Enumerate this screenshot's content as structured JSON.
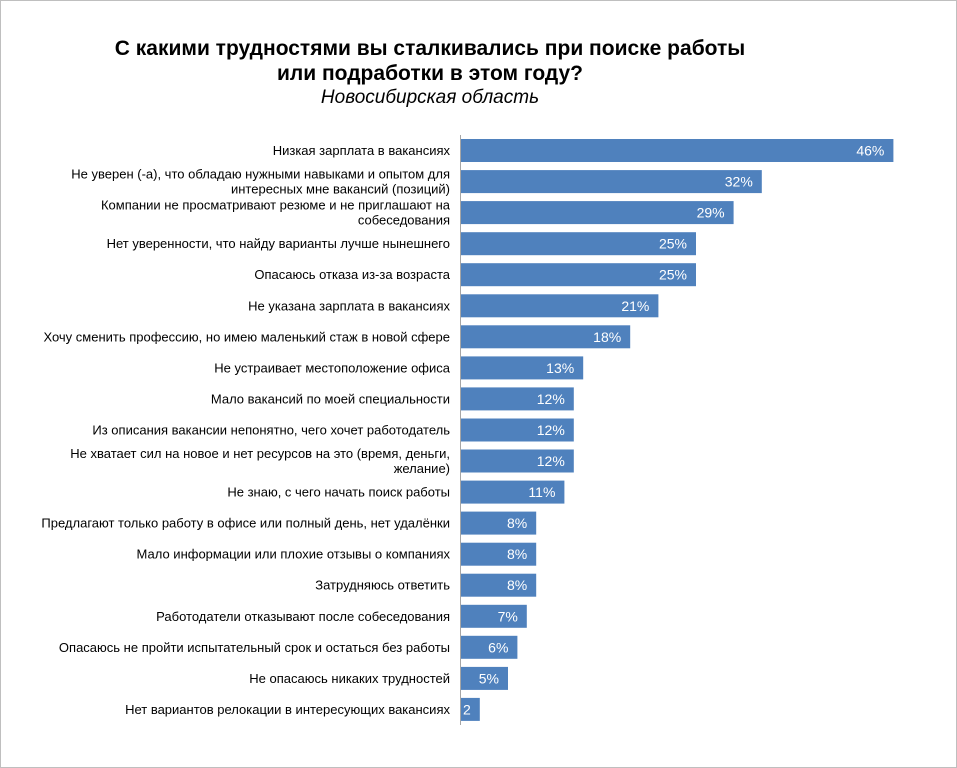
{
  "header": {
    "title_line1": "С какими трудностями вы сталкивались при поиске работы",
    "title_line2": "или подработки в этом году?",
    "subtitle": "Новосибирская область"
  },
  "colors": {
    "bar": "#4f81bd",
    "value_label": "#ffffff",
    "axis": "#a6a6a6",
    "border": "#bfbfbf"
  },
  "chart_data": {
    "type": "bar",
    "orientation": "horizontal",
    "title": "С какими трудностями вы сталкивались при поиске работы или подработки в этом году?",
    "subtitle": "Новосибирская область",
    "xlabel": "",
    "ylabel": "",
    "xlim": [
      0,
      48
    ],
    "grid": false,
    "legend": "none",
    "categories": [
      [
        "Низкая зарплата в вакансиях"
      ],
      [
        "Не уверен (-а), что обладаю нужными навыками и опытом для",
        "интересных мне вакансий (позиций)"
      ],
      [
        "Компании не просматривают резюме и не приглашают на",
        "собеседования"
      ],
      [
        "Нет уверенности, что найду варианты лучше нынешнего"
      ],
      [
        "Опасаюсь отказа из-за возраста"
      ],
      [
        "Не указана зарплата в вакансиях"
      ],
      [
        "Хочу сменить профессию, но имею маленький стаж в новой сфере"
      ],
      [
        "Не устраивает местоположение офиса"
      ],
      [
        "Мало вакансий по моей специальности"
      ],
      [
        "Из описания вакансии непонятно, чего хочет работодатель"
      ],
      [
        "Не хватает сил на новое и нет ресурсов на это (время, деньги,",
        "желание)"
      ],
      [
        "Не знаю, с чего начать поиск работы"
      ],
      [
        "Предлагают только работу в офисе или полный день, нет удалёнки"
      ],
      [
        "Мало информации или плохие отзывы о компаниях"
      ],
      [
        "Затрудняюсь ответить"
      ],
      [
        "Работодатели отказывают после собеседования"
      ],
      [
        "Опасаюсь не пройти испытательный срок и остаться без работы"
      ],
      [
        "Не опасаюсь никаких трудностей"
      ],
      [
        "Нет вариантов релокации в интересующих вакансиях"
      ]
    ],
    "values": [
      46,
      32,
      29,
      25,
      25,
      21,
      18,
      13,
      12,
      12,
      12,
      11,
      8,
      8,
      8,
      7,
      6,
      5,
      2
    ],
    "value_labels": [
      "46%",
      "32%",
      "29%",
      "25%",
      "25%",
      "21%",
      "18%",
      "13%",
      "12%",
      "12%",
      "12%",
      "11%",
      "8%",
      "8%",
      "8%",
      "7%",
      "6%",
      "5%",
      "2"
    ]
  }
}
